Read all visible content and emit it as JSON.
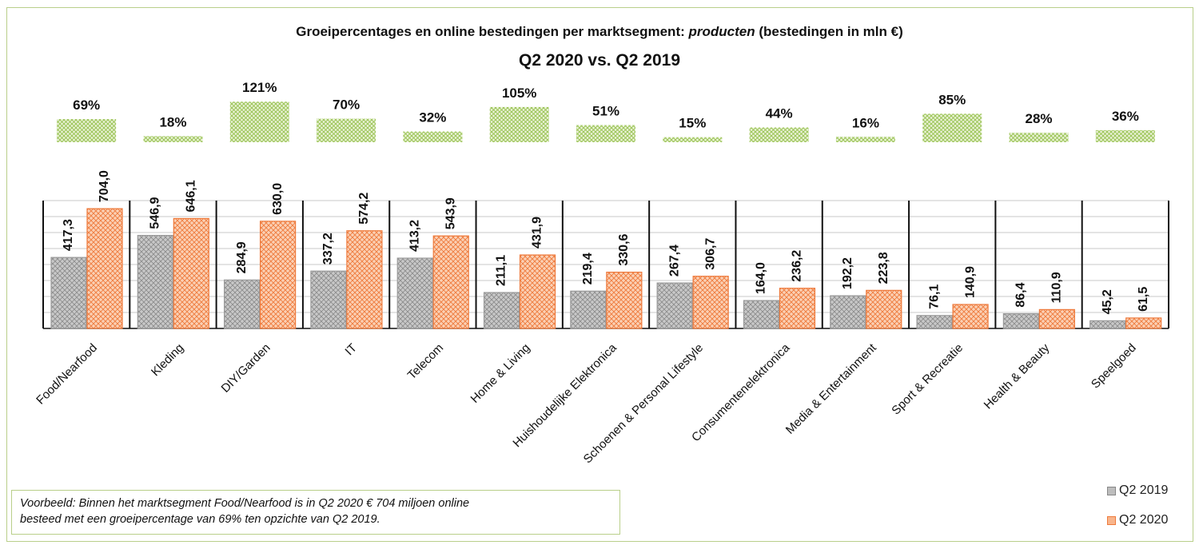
{
  "chart_data": {
    "type": "bar",
    "title_part1": "Groeipercentages en online bestedingen per marktsegment: ",
    "title_italic": "producten",
    "title_part2": " (bestedingen in mln €)",
    "subtitle": "Q2 2020 vs. Q2 2019",
    "categories": [
      "Food/Nearfood",
      "Kleding",
      "DIY/Garden",
      "IT",
      "Telecom",
      "Home & Living",
      "Huishoudelijke Elektronica",
      "Schoenen & Personal Lifestyle",
      "Consumentenelektronica",
      "Media & Entertainment",
      "Sport & Recreatie",
      "Health & Beauty",
      "Speelgoed"
    ],
    "series": [
      {
        "name": "Q2 2019",
        "values": [
          417.3,
          546.9,
          284.9,
          337.2,
          413.2,
          211.1,
          219.4,
          267.4,
          164.0,
          192.2,
          76.1,
          86.4,
          45.2
        ],
        "labels": [
          "417,3",
          "546,9",
          "284,9",
          "337,2",
          "413,2",
          "211,1",
          "219,4",
          "267,4",
          "164,0",
          "192,2",
          "76,1",
          "86,4",
          "45,2"
        ],
        "color": "#bfbfbf"
      },
      {
        "name": "Q2 2020",
        "values": [
          704.0,
          646.1,
          630.0,
          574.2,
          543.9,
          431.9,
          330.6,
          306.7,
          236.2,
          223.8,
          140.9,
          110.9,
          61.5
        ],
        "labels": [
          "704,0",
          "646,1",
          "630,0",
          "574,2",
          "543,9",
          "431,9",
          "330,6",
          "306,7",
          "236,2",
          "223,8",
          "140,9",
          "110,9",
          "61,5"
        ],
        "color": "#f28a52"
      }
    ],
    "growth": {
      "values": [
        69,
        18,
        121,
        70,
        32,
        105,
        51,
        15,
        44,
        16,
        85,
        28,
        36
      ],
      "labels": [
        "69%",
        "18%",
        "121%",
        "70%",
        "32%",
        "105%",
        "51%",
        "15%",
        "44%",
        "16%",
        "85%",
        "28%",
        "36%"
      ],
      "color": "#9dc55a"
    },
    "ylim": [
      0,
      900
    ],
    "grid": true,
    "legend_position": "bottom-right"
  },
  "note": {
    "line1": "Voorbeeld: Binnen het marktsegment Food/Nearfood is in Q2 2020 € 704 miljoen online",
    "line2": "besteed met een groeipercentage van 69% ten opzichte van Q2 2019."
  }
}
